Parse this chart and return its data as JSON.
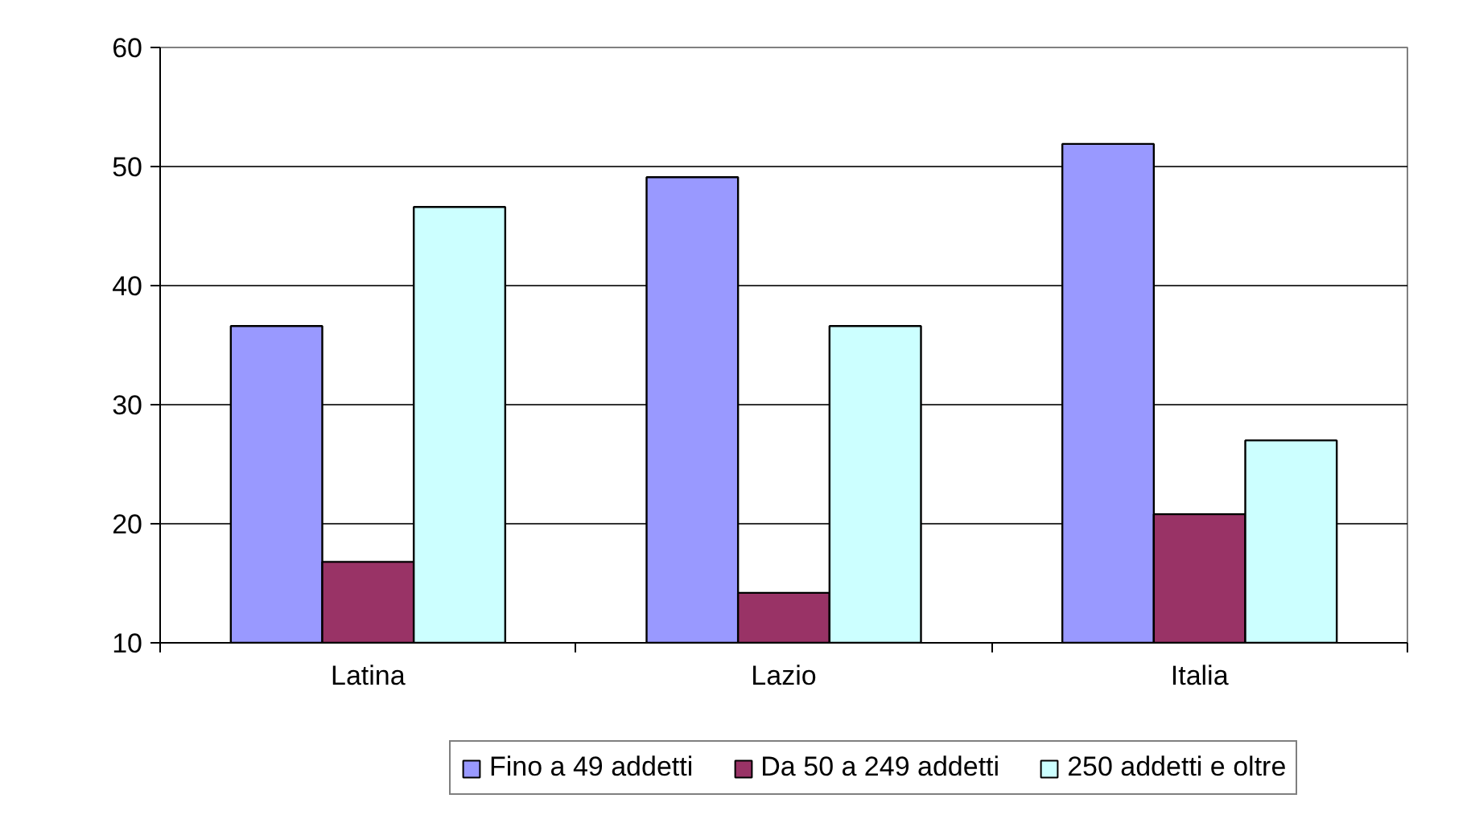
{
  "chart_data": {
    "type": "bar",
    "categories": [
      "Latina",
      "Lazio",
      "Italia"
    ],
    "series": [
      {
        "name": "Fino a 49 addetti",
        "color": "#9999ff",
        "values": [
          36.6,
          49.1,
          51.9
        ]
      },
      {
        "name": "Da 50 a 249 addetti",
        "color": "#993366",
        "values": [
          16.8,
          14.2,
          20.8
        ]
      },
      {
        "name": "250 addetti e oltre",
        "color": "#ccffff",
        "values": [
          46.6,
          36.6,
          27.0
        ]
      }
    ],
    "ylim": [
      10,
      60
    ],
    "yticks": [
      10,
      20,
      30,
      40,
      50,
      60
    ],
    "grid": "y",
    "legend": "bottom"
  }
}
